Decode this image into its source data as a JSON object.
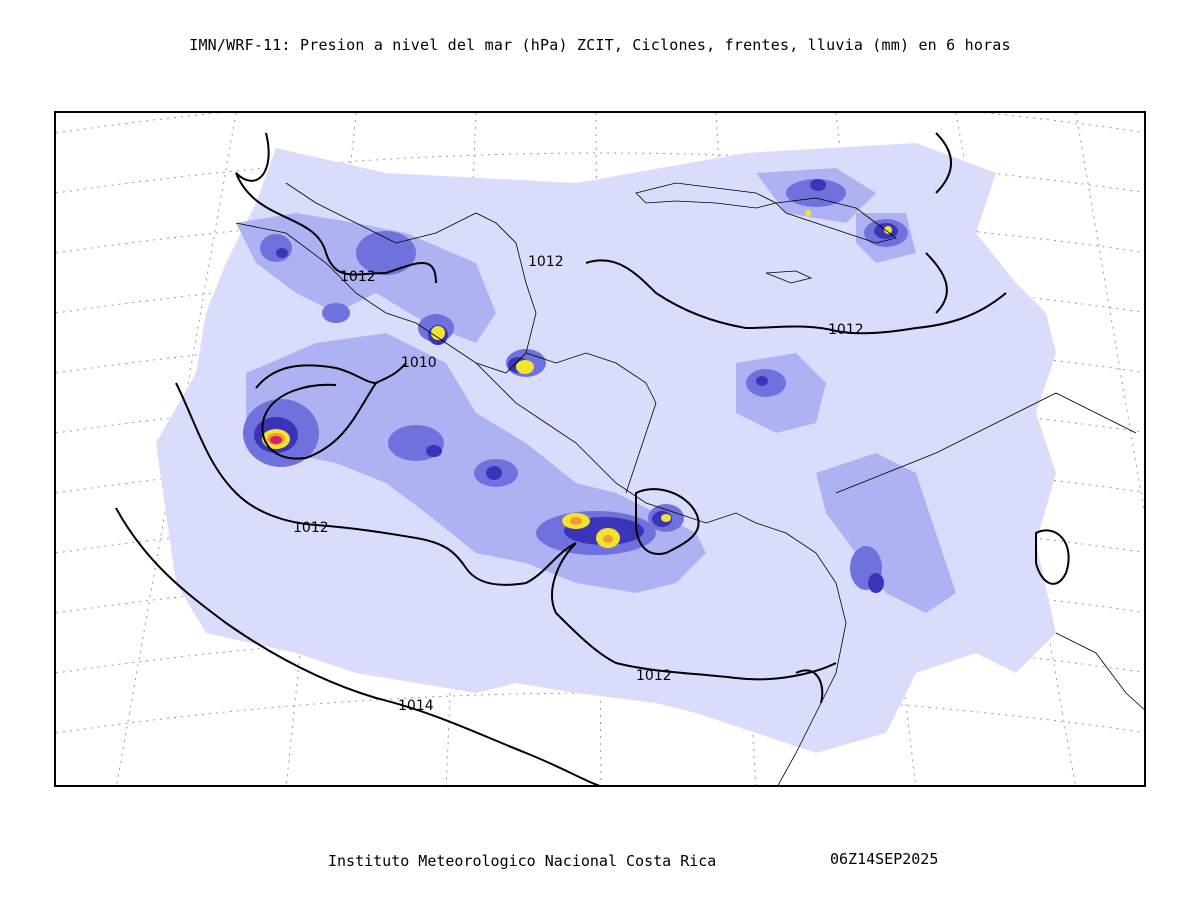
{
  "title": "IMN/WRF-11: Presion a nivel del mar (hPa) ZCIT, Ciclones, frentes, lluvia (mm) en 6 horas",
  "footer": {
    "institution": "Instituto Meteorologico Nacional Costa Rica",
    "valid_time": "06Z14SEP2025"
  },
  "isobar_labels": {
    "a": "1012",
    "b": "1012",
    "c": "1012",
    "d": "1010",
    "e": "1012",
    "f": "1012",
    "g": "1014"
  },
  "colors": {
    "rain_light": "#d9dcfb",
    "rain_mid": "#aeb2f2",
    "rain_strong": "#6f72dc",
    "rain_heavy": "#3a34b8",
    "rain_extreme_yellow": "#f2e42c",
    "rain_extreme_orange": "#f49a36",
    "rain_extreme_magenta": "#d41f6e",
    "isobar": "#000000",
    "grid": "#9a9a9a"
  }
}
